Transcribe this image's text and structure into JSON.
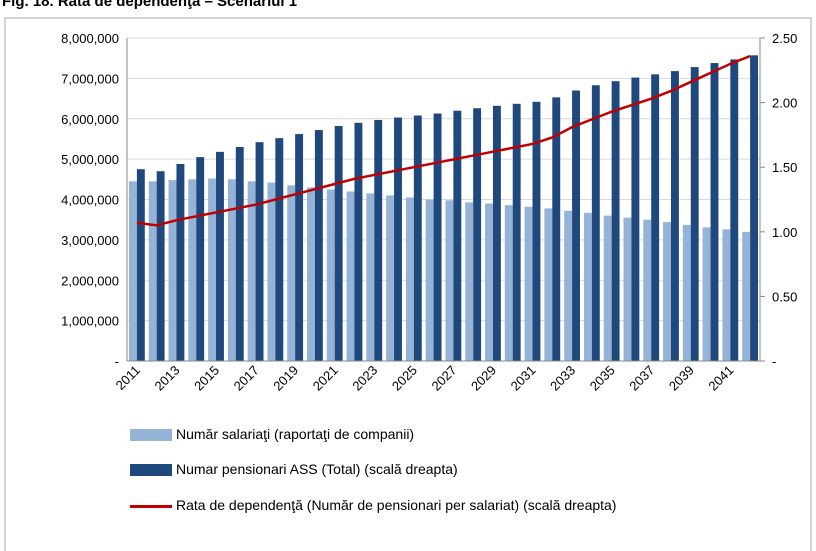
{
  "chart_data": {
    "type": "bar",
    "title": "Fig. 18. Rata de dependenţa – Scenariul 1",
    "categories": [
      "2011",
      null,
      "2013",
      null,
      "2015",
      null,
      "2017",
      null,
      "2019",
      null,
      "2021",
      null,
      "2023",
      null,
      "2025",
      null,
      "2027",
      null,
      "2029",
      null,
      "2031",
      null,
      "2033",
      null,
      "2035",
      null,
      "2037",
      null,
      "2039",
      null,
      "2041",
      null
    ],
    "series": [
      {
        "name": "Număr salariaţi (raportaţi de companii)",
        "type": "bar",
        "color": "#95b3d7",
        "values": [
          4450000,
          4450000,
          4480000,
          4500000,
          4520000,
          4500000,
          4450000,
          4420000,
          4350000,
          4300000,
          4250000,
          4200000,
          4150000,
          4100000,
          4050000,
          4000000,
          3980000,
          3930000,
          3900000,
          3860000,
          3820000,
          3780000,
          3720000,
          3670000,
          3600000,
          3550000,
          3500000,
          3440000,
          3370000,
          3310000,
          3260000,
          3200000
        ]
      },
      {
        "name": "Numar pensionari ASS (Total) (scală dreapta)",
        "type": "bar",
        "color": "#1f497d",
        "values": [
          4750000,
          4700000,
          4880000,
          5050000,
          5180000,
          5300000,
          5420000,
          5520000,
          5620000,
          5720000,
          5820000,
          5900000,
          5970000,
          6030000,
          6080000,
          6130000,
          6200000,
          6260000,
          6320000,
          6370000,
          6420000,
          6530000,
          6700000,
          6830000,
          6930000,
          7020000,
          7100000,
          7180000,
          7280000,
          7380000,
          7470000,
          7570000
        ]
      },
      {
        "name": "Rata de dependenţă (Număr de pensionari per salariat) (scală dreapta)",
        "type": "line",
        "axis": "y2",
        "color": "#c00000",
        "values": [
          1.07,
          1.05,
          1.09,
          1.12,
          1.15,
          1.18,
          1.21,
          1.25,
          1.29,
          1.33,
          1.37,
          1.41,
          1.44,
          1.47,
          1.5,
          1.53,
          1.56,
          1.59,
          1.62,
          1.65,
          1.68,
          1.73,
          1.81,
          1.87,
          1.93,
          1.98,
          2.03,
          2.09,
          2.16,
          2.23,
          2.3,
          2.36
        ]
      }
    ],
    "ylim": [
      0,
      8000000
    ],
    "yticks": [
      {
        "value": 0,
        "label": "-"
      },
      {
        "value": 1000000,
        "label": "1,000,000"
      },
      {
        "value": 2000000,
        "label": "2,000,000"
      },
      {
        "value": 3000000,
        "label": "3,000,000"
      },
      {
        "value": 4000000,
        "label": "4,000,000"
      },
      {
        "value": 5000000,
        "label": "5,000,000"
      },
      {
        "value": 6000000,
        "label": "6,000,000"
      },
      {
        "value": 7000000,
        "label": "7,000,000"
      },
      {
        "value": 8000000,
        "label": "8,000,000"
      }
    ],
    "y2lim": [
      0,
      2.5
    ],
    "y2ticks": [
      {
        "value": 0,
        "label": "-"
      },
      {
        "value": 0.5,
        "label": "0.50"
      },
      {
        "value": 1,
        "label": "1.00"
      },
      {
        "value": 1.5,
        "label": "1.50"
      },
      {
        "value": 2,
        "label": "2.00"
      },
      {
        "value": 2.5,
        "label": "2.50"
      }
    ],
    "grid": true
  }
}
